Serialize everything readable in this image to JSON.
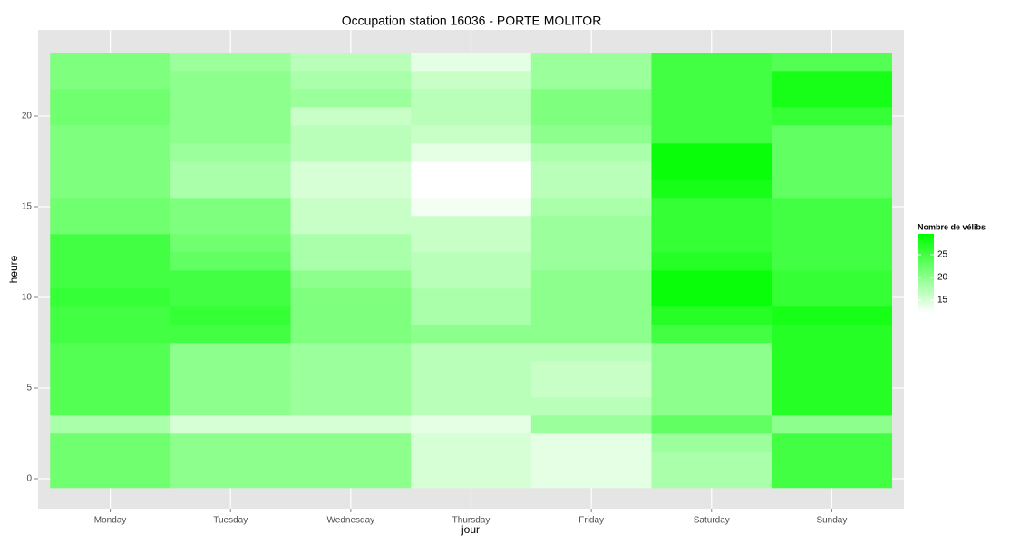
{
  "chart_data": {
    "type": "heatmap",
    "title": "Occupation station 16036 - PORTE MOLITOR",
    "x_label": "jour",
    "y_label": "heure",
    "categories": [
      "Monday",
      "Tuesday",
      "Wednesday",
      "Thursday",
      "Friday",
      "Saturday",
      "Sunday"
    ],
    "hours": [
      0,
      1,
      2,
      3,
      4,
      5,
      6,
      7,
      8,
      9,
      10,
      11,
      12,
      13,
      14,
      15,
      16,
      17,
      18,
      19,
      20,
      21,
      22,
      23
    ],
    "values": [
      [
        22,
        22,
        22,
        18,
        24,
        24,
        24,
        24,
        25,
        25,
        26,
        25,
        25,
        25,
        22,
        22,
        21,
        21,
        21,
        21,
        22,
        22,
        21,
        21
      ],
      [
        20,
        20,
        20,
        15,
        20,
        20,
        20,
        20,
        25,
        26,
        25,
        25,
        23,
        22,
        21,
        21,
        18,
        18,
        19,
        20,
        20,
        20,
        20,
        19
      ],
      [
        20,
        20,
        20,
        15,
        19,
        19,
        19,
        19,
        21,
        21,
        21,
        20,
        18,
        18,
        16,
        16,
        15,
        15,
        17,
        17,
        16,
        19,
        18,
        17
      ],
      [
        15,
        15,
        15,
        14,
        17,
        17,
        17,
        17,
        20,
        18,
        18,
        17,
        17,
        16,
        16,
        13,
        12,
        12,
        14,
        16,
        17,
        17,
        16,
        14
      ],
      [
        14,
        14,
        14,
        19,
        17,
        16,
        16,
        17,
        20,
        20,
        20,
        20,
        19,
        19,
        19,
        18,
        17,
        17,
        18,
        20,
        21,
        21,
        19,
        19
      ],
      [
        18,
        18,
        19,
        23,
        20,
        20,
        20,
        20,
        25,
        27,
        29,
        29,
        27,
        26,
        26,
        26,
        28,
        29,
        29,
        25,
        25,
        25,
        25,
        25
      ],
      [
        25,
        25,
        25,
        20,
        27,
        27,
        27,
        27,
        27,
        28,
        26,
        26,
        25,
        25,
        25,
        25,
        23,
        23,
        23,
        23,
        26,
        28,
        28,
        24
      ]
    ],
    "ylim": [
      -1.65,
      24.75
    ],
    "yticks": [
      0,
      5,
      10,
      15,
      20
    ],
    "grid": true,
    "colorbar": {
      "title": "Nombre de vélibs",
      "lim": [
        12.2,
        29.6
      ],
      "ticks": [
        15,
        20,
        25
      ],
      "low": "#ffffff",
      "high": "#00ff00"
    }
  }
}
